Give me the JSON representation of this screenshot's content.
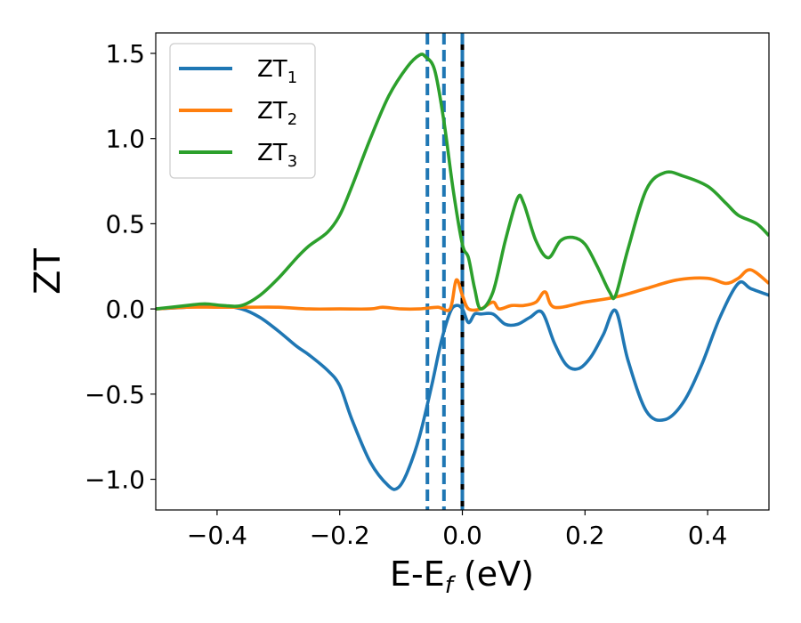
{
  "chart_data": {
    "type": "line",
    "xlabel_main": "E-E",
    "xlabel_sub": "f",
    "xlabel_unit": " (eV)",
    "ylabel": "ZT",
    "xlim": [
      -0.5,
      0.5
    ],
    "ylim": [
      -1.18,
      1.62
    ],
    "xticks": [
      -0.4,
      -0.2,
      0.0,
      0.2,
      0.4
    ],
    "xtick_labels": [
      "−0.4",
      "−0.2",
      "0.0",
      "0.2",
      "0.4"
    ],
    "yticks": [
      -1.0,
      -0.5,
      0.0,
      0.5,
      1.0,
      1.5
    ],
    "ytick_labels": [
      "−1.0",
      "−0.5",
      "0.0",
      "0.5",
      "1.0",
      "1.5"
    ],
    "grid": false,
    "legend_position": "top-left",
    "vlines": [
      {
        "x": -0.057,
        "style": "dashed",
        "color": "#1f77b4"
      },
      {
        "x": -0.03,
        "style": "dashed",
        "color": "#1f77b4"
      },
      {
        "x": 0.0,
        "style": "solid",
        "color": "#000000"
      },
      {
        "x": 0.0,
        "style": "dashed",
        "color": "#1f77b4"
      }
    ],
    "series": [
      {
        "name": "ZT",
        "name_sub": "1",
        "color": "#1f77b4",
        "x": [
          -0.5,
          -0.45,
          -0.4,
          -0.36,
          -0.33,
          -0.3,
          -0.27,
          -0.25,
          -0.22,
          -0.2,
          -0.18,
          -0.15,
          -0.12,
          -0.105,
          -0.09,
          -0.07,
          -0.05,
          -0.035,
          -0.02,
          -0.01,
          0.0,
          0.01,
          0.02,
          0.03,
          0.05,
          0.07,
          0.09,
          0.11,
          0.13,
          0.15,
          0.17,
          0.19,
          0.21,
          0.23,
          0.25,
          0.27,
          0.3,
          0.33,
          0.36,
          0.39,
          0.42,
          0.45,
          0.47,
          0.5
        ],
        "y": [
          0.0,
          0.01,
          0.02,
          0.0,
          -0.05,
          -0.13,
          -0.22,
          -0.27,
          -0.36,
          -0.45,
          -0.65,
          -0.9,
          -1.04,
          -1.05,
          -0.96,
          -0.75,
          -0.45,
          -0.2,
          -0.02,
          0.02,
          0.0,
          -0.08,
          -0.03,
          -0.03,
          -0.03,
          -0.09,
          -0.09,
          -0.05,
          -0.02,
          -0.2,
          -0.33,
          -0.35,
          -0.28,
          -0.15,
          -0.01,
          -0.3,
          -0.6,
          -0.65,
          -0.55,
          -0.33,
          -0.05,
          0.15,
          0.12,
          0.08
        ]
      },
      {
        "name": "ZT",
        "name_sub": "2",
        "color": "#ff7f0e",
        "x": [
          -0.5,
          -0.45,
          -0.4,
          -0.35,
          -0.3,
          -0.25,
          -0.2,
          -0.15,
          -0.13,
          -0.1,
          -0.07,
          -0.04,
          -0.02,
          -0.01,
          0.0,
          0.01,
          0.03,
          0.05,
          0.06,
          0.08,
          0.1,
          0.12,
          0.135,
          0.15,
          0.2,
          0.25,
          0.3,
          0.35,
          0.4,
          0.43,
          0.45,
          0.47,
          0.5
        ],
        "y": [
          0.0,
          0.01,
          0.01,
          0.01,
          0.01,
          0.0,
          0.0,
          0.0,
          0.01,
          0.0,
          0.0,
          0.01,
          0.0,
          0.17,
          0.08,
          0.0,
          0.0,
          0.04,
          0.0,
          0.02,
          0.02,
          0.04,
          0.1,
          0.01,
          0.04,
          0.07,
          0.12,
          0.17,
          0.18,
          0.15,
          0.18,
          0.23,
          0.15
        ]
      },
      {
        "name": "ZT",
        "name_sub": "3",
        "color": "#2ca02c",
        "x": [
          -0.5,
          -0.45,
          -0.42,
          -0.39,
          -0.36,
          -0.33,
          -0.3,
          -0.27,
          -0.25,
          -0.22,
          -0.2,
          -0.18,
          -0.15,
          -0.12,
          -0.09,
          -0.07,
          -0.06,
          -0.045,
          -0.03,
          -0.015,
          0.0,
          0.01,
          0.02,
          0.03,
          0.05,
          0.07,
          0.09,
          0.1,
          0.12,
          0.14,
          0.16,
          0.18,
          0.2,
          0.22,
          0.24,
          0.25,
          0.27,
          0.3,
          0.33,
          0.36,
          0.4,
          0.43,
          0.45,
          0.48,
          0.5
        ],
        "y": [
          0.0,
          0.02,
          0.03,
          0.02,
          0.02,
          0.08,
          0.18,
          0.3,
          0.37,
          0.45,
          0.55,
          0.72,
          1.0,
          1.25,
          1.42,
          1.49,
          1.48,
          1.4,
          1.1,
          0.7,
          0.38,
          0.3,
          0.12,
          0.0,
          0.1,
          0.4,
          0.65,
          0.62,
          0.4,
          0.3,
          0.4,
          0.42,
          0.38,
          0.25,
          0.1,
          0.08,
          0.35,
          0.7,
          0.8,
          0.78,
          0.72,
          0.62,
          0.55,
          0.5,
          0.43
        ]
      }
    ]
  }
}
